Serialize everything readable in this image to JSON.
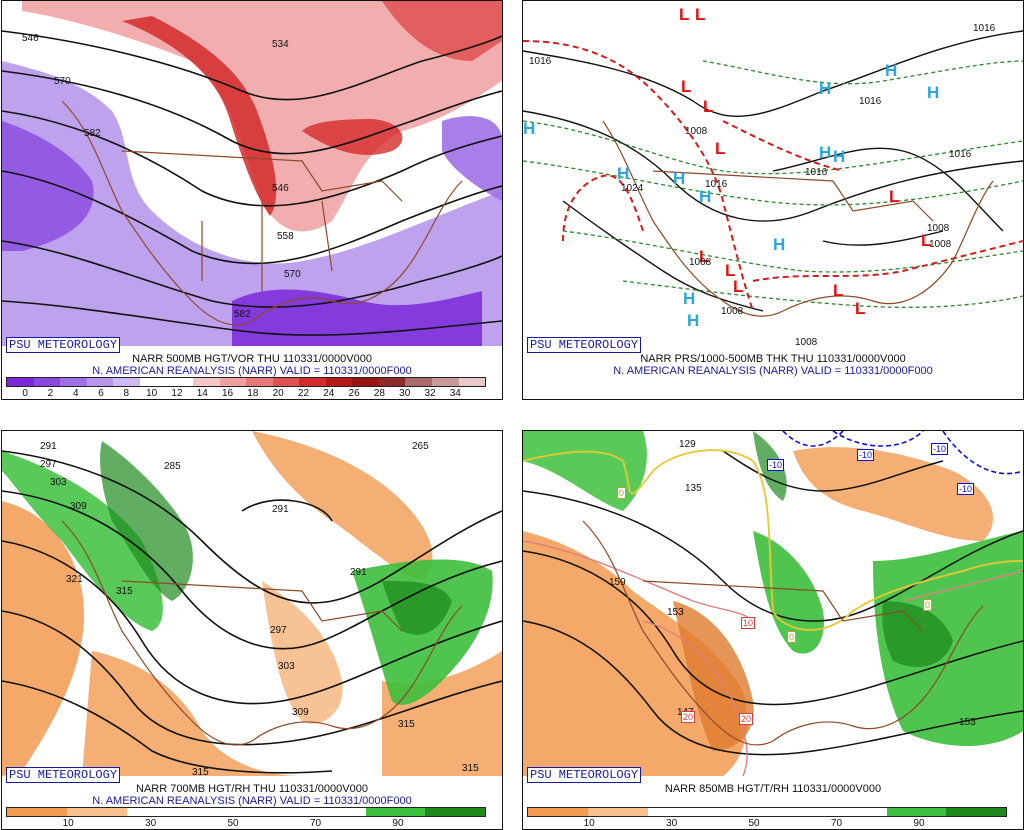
{
  "credit": "PSU METEOROLOGY",
  "panels": {
    "p1": {
      "caption1": "NARR 500MB HGT/VOR THU 110331/0000V000",
      "caption2": "N. AMERICAN REANALYSIS (NARR) VALID = 110331/0000F000",
      "ticks": [
        "0",
        "2",
        "4",
        "6",
        "8",
        "10",
        "12",
        "14",
        "16",
        "18",
        "20",
        "22",
        "24",
        "26",
        "28",
        "30",
        "32",
        "34"
      ],
      "bar_colors": [
        "#7a28d9",
        "#8a48df",
        "#a070e6",
        "#b798ec",
        "#cdbaf2",
        "#ffffff",
        "#ffffff",
        "#f6c6c6",
        "#f0a0a0",
        "#e97878",
        "#e05050",
        "#d42a2a",
        "#b81818",
        "#9c1414",
        "#8a2a2a",
        "#a86a6a",
        "#c79999",
        "#e8c8c8"
      ],
      "labels": [
        "534",
        "570",
        "582",
        "546",
        "558",
        "570",
        "582",
        "546"
      ]
    },
    "p2": {
      "caption1": "NARR PRS/1000-500MB THK THU 110331/0000V000",
      "caption2": "N. AMERICAN REANALYSIS (NARR) VALID = 110331/0000F000",
      "labels": [
        "1016",
        "1008",
        "1016",
        "1016",
        "1016",
        "1008",
        "1024",
        "1016",
        "1008",
        "1008",
        "1016",
        "1008",
        "1008"
      ],
      "highs": [
        "H",
        "H",
        "H",
        "H",
        "H",
        "H",
        "H",
        "H",
        "H",
        "H",
        "H",
        "H"
      ],
      "lows": [
        "L",
        "L",
        "L",
        "L",
        "L",
        "L",
        "L",
        "L",
        "L",
        "L",
        "L",
        "L"
      ]
    },
    "p3": {
      "caption1": "NARR 700MB HGT/RH THU 110331/0000V000",
      "caption2": "N. AMERICAN REANALYSIS (NARR) VALID = 110331/0000F000",
      "ticks": [
        "10",
        "30",
        "50",
        "70",
        "90"
      ],
      "bar_colors": [
        "#f29a50",
        "#f7c08e",
        "#ffffff",
        "#ffffff",
        "#ffffff",
        "#ffffff",
        "#3cbf3c",
        "#1e8a1e"
      ],
      "labels": [
        "291",
        "297",
        "303",
        "309",
        "285",
        "265",
        "321",
        "315",
        "291",
        "291",
        "297",
        "303",
        "309",
        "315",
        "315",
        "315"
      ]
    },
    "p4": {
      "caption1": "NARR 850MB HGT/T/RH 110331/0000V000",
      "ticks": [
        "10",
        "30",
        "50",
        "70",
        "90"
      ],
      "bar_colors": [
        "#f29a50",
        "#f7c08e",
        "#ffffff",
        "#ffffff",
        "#ffffff",
        "#ffffff",
        "#3cbf3c",
        "#1e8a1e"
      ],
      "labels": [
        "129",
        "135",
        "159",
        "153",
        "147",
        "153"
      ],
      "temp_boxes": [
        "-10",
        "-10",
        "-10",
        "-10",
        "0",
        "0",
        "0",
        "10",
        "20",
        "20"
      ]
    }
  }
}
